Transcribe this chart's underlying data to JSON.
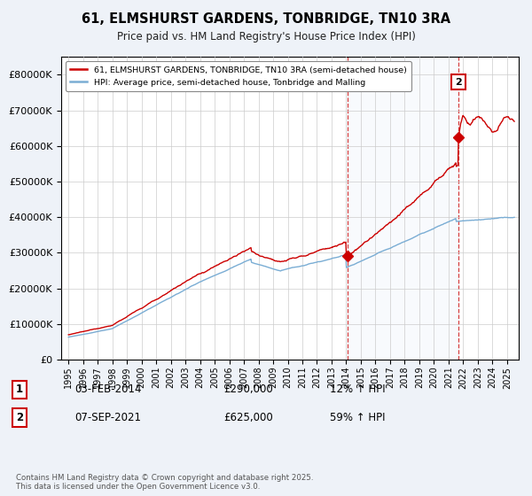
{
  "title": "61, ELMSHURST GARDENS, TONBRIDGE, TN10 3RA",
  "subtitle": "Price paid vs. HM Land Registry's House Price Index (HPI)",
  "legend_label_red": "61, ELMSHURST GARDENS, TONBRIDGE, TN10 3RA (semi-detached house)",
  "legend_label_blue": "HPI: Average price, semi-detached house, Tonbridge and Malling",
  "annotation1_date": "03-FEB-2014",
  "annotation1_value": "£290,000",
  "annotation1_hpi": "12% ↑ HPI",
  "annotation1_year": 2014.1,
  "annotation1_price": 290000,
  "annotation2_date": "07-SEP-2021",
  "annotation2_value": "£625,000",
  "annotation2_hpi": "59% ↑ HPI",
  "annotation2_year": 2021.68,
  "annotation2_price": 625000,
  "footer": "Contains HM Land Registry data © Crown copyright and database right 2025.\nThis data is licensed under the Open Government Licence v3.0.",
  "background_color": "#eef2f8",
  "plot_background": "#ffffff",
  "grid_color": "#cccccc",
  "red_color": "#cc0000",
  "blue_color": "#7aadd4",
  "dashed_color": "#cc0000",
  "span_color": "#dce8f5",
  "ylim": [
    0,
    850000
  ],
  "yticks": [
    0,
    100000,
    200000,
    300000,
    400000,
    500000,
    600000,
    700000,
    800000
  ],
  "xlim": [
    1994.5,
    2025.8
  ],
  "xtick_years": [
    1995,
    1996,
    1997,
    1998,
    1999,
    2000,
    2001,
    2002,
    2003,
    2004,
    2005,
    2006,
    2007,
    2008,
    2009,
    2010,
    2011,
    2012,
    2013,
    2014,
    2015,
    2016,
    2017,
    2018,
    2019,
    2020,
    2021,
    2022,
    2023,
    2024,
    2025
  ]
}
